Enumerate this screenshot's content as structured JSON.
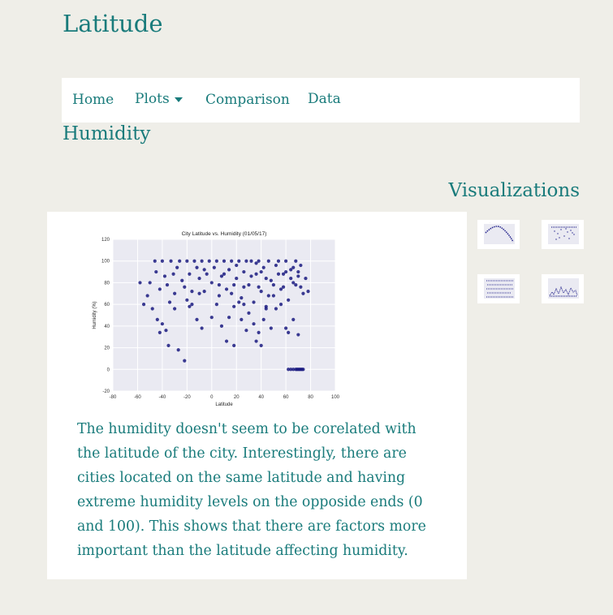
{
  "header": {
    "title": "Latitude"
  },
  "nav": {
    "home": "Home",
    "plots": "Plots",
    "comparison": "Comparison",
    "data": "Data"
  },
  "page": {
    "title": "Humidity",
    "visualizations_title": "Visualizations",
    "description": "The humidity doesn't seem to be corelated with the latitude of the city. Interestingly, there are cities located on the same latitude and having extreme humidity levels on the opposide ends (0 and 100). This shows that there are factors more important than the latitude affecting humidity."
  },
  "colors": {
    "accent": "#197b7b",
    "point": "#1a1a80",
    "plot_bg": "#eaeaf2"
  },
  "chart_data": {
    "type": "scatter",
    "title": "City Latitude vs. Humidity (01/05/17)",
    "xlabel": "Latitude",
    "ylabel": "Humidity (%)",
    "xlim": [
      -80,
      100
    ],
    "ylim": [
      -20,
      120
    ],
    "xticks": [
      -80,
      -60,
      -40,
      -20,
      0,
      20,
      40,
      60,
      80,
      100
    ],
    "yticks": [
      -20,
      0,
      20,
      40,
      60,
      80,
      100,
      120
    ],
    "grid": true,
    "points": [
      [
        -46,
        100
      ],
      [
        -45,
        90
      ],
      [
        -42,
        74
      ],
      [
        -40,
        100
      ],
      [
        -38,
        86
      ],
      [
        -36,
        78
      ],
      [
        -34,
        62
      ],
      [
        -33,
        100
      ],
      [
        -31,
        88
      ],
      [
        -30,
        70
      ],
      [
        -28,
        94
      ],
      [
        -26,
        100
      ],
      [
        -24,
        82
      ],
      [
        -22,
        76
      ],
      [
        -20,
        100
      ],
      [
        -18,
        88
      ],
      [
        -16,
        60
      ],
      [
        -14,
        100
      ],
      [
        -12,
        94
      ],
      [
        -10,
        84
      ],
      [
        -8,
        100
      ],
      [
        -6,
        72
      ],
      [
        -4,
        88
      ],
      [
        -2,
        100
      ],
      [
        0,
        80
      ],
      [
        2,
        94
      ],
      [
        4,
        100
      ],
      [
        6,
        68
      ],
      [
        8,
        86
      ],
      [
        10,
        100
      ],
      [
        12,
        74
      ],
      [
        14,
        92
      ],
      [
        16,
        100
      ],
      [
        18,
        58
      ],
      [
        20,
        84
      ],
      [
        22,
        100
      ],
      [
        24,
        66
      ],
      [
        26,
        90
      ],
      [
        28,
        100
      ],
      [
        30,
        78
      ],
      [
        32,
        100
      ],
      [
        34,
        62
      ],
      [
        36,
        88
      ],
      [
        38,
        100
      ],
      [
        40,
        72
      ],
      [
        42,
        94
      ],
      [
        44,
        56
      ],
      [
        46,
        100
      ],
      [
        48,
        82
      ],
      [
        50,
        68
      ],
      [
        52,
        96
      ],
      [
        54,
        100
      ],
      [
        56,
        74
      ],
      [
        58,
        88
      ],
      [
        60,
        100
      ],
      [
        62,
        64
      ],
      [
        64,
        92
      ],
      [
        66,
        80
      ],
      [
        68,
        100
      ],
      [
        70,
        86
      ],
      [
        72,
        76
      ],
      [
        74,
        70
      ],
      [
        76,
        84
      ],
      [
        78,
        72
      ],
      [
        -50,
        80
      ],
      [
        -52,
        68
      ],
      [
        -55,
        60
      ],
      [
        -58,
        80
      ],
      [
        -48,
        56
      ],
      [
        -44,
        46
      ],
      [
        -42,
        34
      ],
      [
        -40,
        42
      ],
      [
        -37,
        36
      ],
      [
        -35,
        22
      ],
      [
        -30,
        56
      ],
      [
        -27,
        18
      ],
      [
        -22,
        8
      ],
      [
        -18,
        58
      ],
      [
        -12,
        46
      ],
      [
        -8,
        38
      ],
      [
        0,
        48
      ],
      [
        4,
        60
      ],
      [
        8,
        40
      ],
      [
        12,
        26
      ],
      [
        14,
        48
      ],
      [
        18,
        22
      ],
      [
        22,
        62
      ],
      [
        24,
        46
      ],
      [
        28,
        36
      ],
      [
        30,
        52
      ],
      [
        34,
        42
      ],
      [
        36,
        26
      ],
      [
        38,
        34
      ],
      [
        40,
        22
      ],
      [
        42,
        46
      ],
      [
        44,
        58
      ],
      [
        48,
        38
      ],
      [
        52,
        56
      ],
      [
        56,
        60
      ],
      [
        60,
        38
      ],
      [
        62,
        34
      ],
      [
        66,
        46
      ],
      [
        70,
        32
      ],
      [
        62,
        0
      ],
      [
        64,
        0
      ],
      [
        66,
        0
      ],
      [
        68,
        0
      ],
      [
        69,
        0
      ],
      [
        70,
        0
      ],
      [
        71,
        0
      ],
      [
        72,
        0
      ],
      [
        73,
        0
      ],
      [
        74,
        0
      ],
      [
        -20,
        64
      ],
      [
        -16,
        72
      ],
      [
        -10,
        70
      ],
      [
        -6,
        92
      ],
      [
        6,
        78
      ],
      [
        10,
        88
      ],
      [
        16,
        70
      ],
      [
        20,
        96
      ],
      [
        26,
        76
      ],
      [
        32,
        86
      ],
      [
        36,
        98
      ],
      [
        40,
        90
      ],
      [
        44,
        84
      ],
      [
        50,
        78
      ],
      [
        54,
        88
      ],
      [
        58,
        76
      ],
      [
        60,
        90
      ],
      [
        64,
        84
      ],
      [
        66,
        94
      ],
      [
        68,
        78
      ],
      [
        70,
        90
      ],
      [
        72,
        96
      ],
      [
        46,
        68
      ],
      [
        38,
        76
      ],
      [
        26,
        60
      ],
      [
        18,
        78
      ]
    ]
  }
}
